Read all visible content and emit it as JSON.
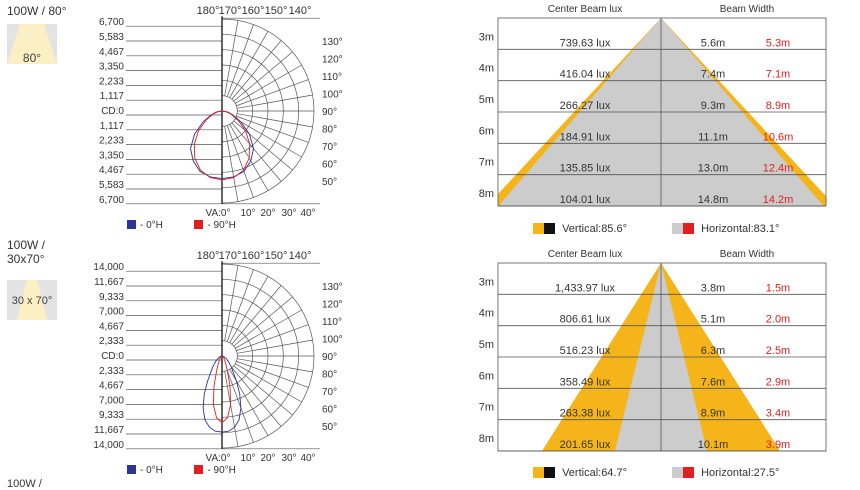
{
  "products": [
    {
      "header_lines": [
        "100W / 80°"
      ],
      "thumb_label": "80°",
      "legend": {
        "h0": "- 0°H",
        "h90": "- 90°H"
      },
      "beam_legend": {
        "vertical": "Vertical:85.6°",
        "horizontal": "Horizontal:83.1°"
      }
    },
    {
      "header_lines": [
        "100W /",
        "30x70°"
      ],
      "thumb_label": "30 x 70°",
      "legend": {
        "h0": "- 0°H",
        "h90": "- 90°H"
      },
      "beam_legend": {
        "vertical": "Vertical:64.7°",
        "horizontal": "Horizontal:27.5°"
      }
    }
  ],
  "footer_partial": "100W /",
  "colors": {
    "h0": "#2b3595",
    "h90": "#e02020",
    "vertical_beam": "#f5b51a",
    "horizontal_beam": "#cccccc",
    "vertical_dark": "#111111",
    "horizontal_red": "#e02020"
  },
  "chart_data": [
    {
      "type": "polar",
      "top_angle_labels": [
        "180°",
        "170°",
        "160°",
        "150°",
        "140°"
      ],
      "right_angle_labels": [
        "130°",
        "120°",
        "110°",
        "100°",
        "90°",
        "80°",
        "70°",
        "60°",
        "50°"
      ],
      "bottom_angle_labels": [
        "VA:0°",
        "10°",
        "20°",
        "30°",
        "40°"
      ],
      "radial_labels": [
        "6,700",
        "5,583",
        "4,467",
        "3,350",
        "2,233",
        "1,117",
        "CD:0",
        "1,117",
        "2,233",
        "3,350",
        "4,467",
        "5,583",
        "6,700"
      ],
      "rmax": 6700,
      "series": [
        {
          "name": "- 0°H",
          "color": "#2b3595",
          "points": [
            [
              0,
              5100
            ],
            [
              10,
              5050
            ],
            [
              20,
              4850
            ],
            [
              30,
              4350
            ],
            [
              40,
              3700
            ],
            [
              50,
              2700
            ],
            [
              60,
              1650
            ],
            [
              70,
              900
            ],
            [
              80,
              450
            ],
            [
              90,
              0
            ]
          ]
        },
        {
          "name": "- 90°H",
          "color": "#e02020",
          "points": [
            [
              0,
              5200
            ],
            [
              10,
              5100
            ],
            [
              20,
              4750
            ],
            [
              30,
              4100
            ],
            [
              40,
              3250
            ],
            [
              50,
              2300
            ],
            [
              60,
              1400
            ],
            [
              70,
              750
            ],
            [
              80,
              350
            ],
            [
              90,
              0
            ]
          ]
        }
      ]
    },
    {
      "type": "table",
      "header": {
        "center": "Center Beam lux",
        "width": "Beam Width"
      },
      "rows": [
        {
          "distance": "3m",
          "lux": "739.63 lux",
          "v_width": "5.6m",
          "h_width": "5.3m"
        },
        {
          "distance": "4m",
          "lux": "416.04 lux",
          "v_width": "7.4m",
          "h_width": "7.1m"
        },
        {
          "distance": "5m",
          "lux": "266.27 lux",
          "v_width": "9.3m",
          "h_width": "8.9m"
        },
        {
          "distance": "6m",
          "lux": "184.91 lux",
          "v_width": "11.1m",
          "h_width": "10.6m"
        },
        {
          "distance": "7m",
          "lux": "135.85 lux",
          "v_width": "13.0m",
          "h_width": "12.4m"
        },
        {
          "distance": "8m",
          "lux": "104.01 lux",
          "v_width": "14.8m",
          "h_width": "14.2m"
        }
      ],
      "vertical_angle": 85.6,
      "horizontal_angle": 83.1
    },
    {
      "type": "polar",
      "top_angle_labels": [
        "180°",
        "170°",
        "160°",
        "150°",
        "140°"
      ],
      "right_angle_labels": [
        "130°",
        "120°",
        "110°",
        "100°",
        "90°",
        "80°",
        "70°",
        "60°",
        "50°"
      ],
      "bottom_angle_labels": [
        "VA:0°",
        "10°",
        "20°",
        "30°",
        "40°"
      ],
      "radial_labels": [
        "14,000",
        "11,667",
        "9,333",
        "7,000",
        "4,667",
        "2,333",
        "CD:0",
        "2,333",
        "4,667",
        "7,000",
        "9,333",
        "11,667",
        "14,000"
      ],
      "rmax": 14000,
      "series": [
        {
          "name": "- 0°H",
          "color": "#2b3595",
          "points": [
            [
              0,
              12000
            ],
            [
              5,
              11900
            ],
            [
              10,
              11400
            ],
            [
              15,
              10400
            ],
            [
              20,
              8700
            ],
            [
              25,
              6600
            ],
            [
              30,
              4500
            ],
            [
              40,
              2300
            ],
            [
              50,
              1300
            ],
            [
              60,
              700
            ],
            [
              75,
              300
            ],
            [
              90,
              0
            ]
          ]
        },
        {
          "name": "- 90°H",
          "color": "#e02020",
          "points": [
            [
              0,
              10500
            ],
            [
              5,
              9800
            ],
            [
              10,
              7800
            ],
            [
              15,
              4900
            ],
            [
              20,
              2500
            ],
            [
              25,
              1400
            ],
            [
              30,
              900
            ],
            [
              40,
              500
            ],
            [
              60,
              250
            ],
            [
              90,
              0
            ]
          ]
        }
      ]
    },
    {
      "type": "table",
      "header": {
        "center": "Center Beam lux",
        "width": "Beam Width"
      },
      "rows": [
        {
          "distance": "3m",
          "lux": "1,433.97 lux",
          "v_width": "3.8m",
          "h_width": "1.5m"
        },
        {
          "distance": "4m",
          "lux": "806.61 lux",
          "v_width": "5.1m",
          "h_width": "2.0m"
        },
        {
          "distance": "5m",
          "lux": "516.23 lux",
          "v_width": "6.3m",
          "h_width": "2.5m"
        },
        {
          "distance": "6m",
          "lux": "358.49 lux",
          "v_width": "7.6m",
          "h_width": "2.9m"
        },
        {
          "distance": "7m",
          "lux": "263.38 lux",
          "v_width": "8.9m",
          "h_width": "3.4m"
        },
        {
          "distance": "8m",
          "lux": "201.65 lux",
          "v_width": "10.1m",
          "h_width": "3.9m"
        }
      ],
      "vertical_angle": 64.7,
      "horizontal_angle": 27.5
    }
  ]
}
